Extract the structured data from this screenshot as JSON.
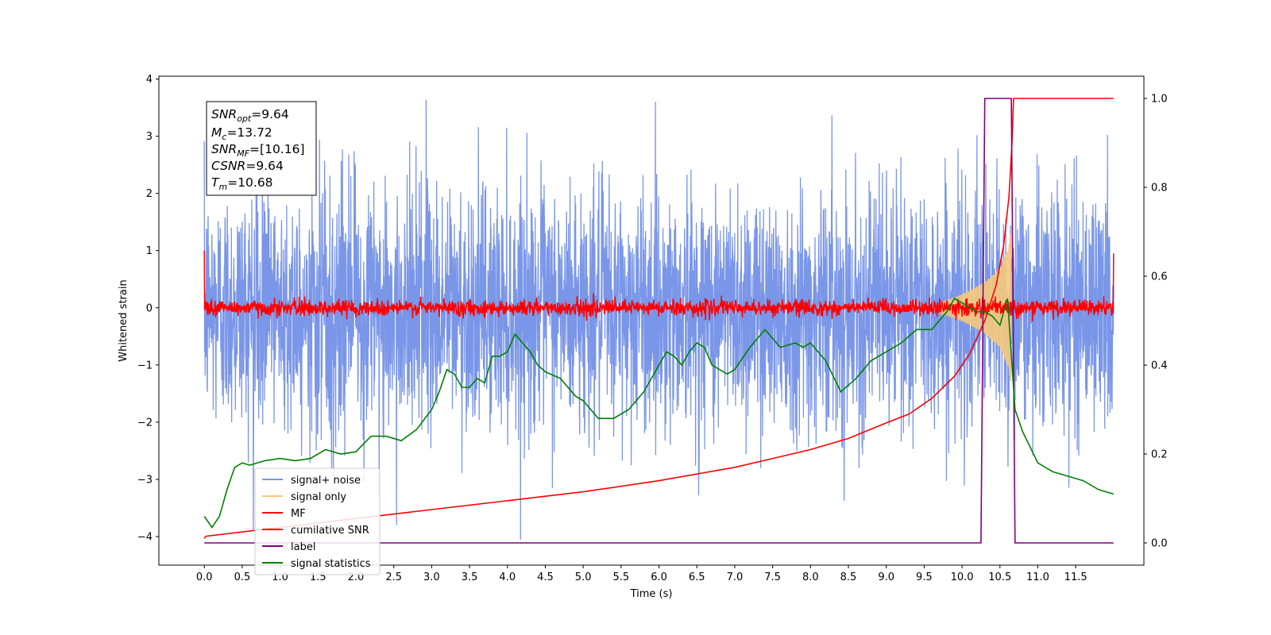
{
  "chart_data": {
    "type": "line",
    "title": "",
    "xlabel": "Time (s)",
    "ylabel": "Whitened strain",
    "y2label": "",
    "xlim": [
      -0.6,
      12.4
    ],
    "ylim": [
      -4.5,
      4.05
    ],
    "y2lim": [
      -0.05,
      1.05
    ],
    "xticks": [
      "0.0",
      "0.5",
      "1.0",
      "1.5",
      "2.0",
      "2.5",
      "3.0",
      "3.5",
      "4.0",
      "4.5",
      "5.0",
      "5.5",
      "6.0",
      "6.5",
      "7.0",
      "7.5",
      "8.0",
      "8.5",
      "9.0",
      "9.5",
      "10.0",
      "10.5",
      "11.0",
      "11.5"
    ],
    "yticks": [
      "−4",
      "−3",
      "−2",
      "−1",
      "0",
      "1",
      "2",
      "3",
      "4"
    ],
    "y2ticks": [
      "0.0",
      "0.2",
      "0.4",
      "0.6",
      "0.8",
      "1.0"
    ],
    "legend_position": "lower-left",
    "grid": false,
    "info_box": {
      "snr_opt": {
        "sym": "SNR",
        "sub": "opt",
        "val": "=9.64"
      },
      "mc": {
        "sym": "M",
        "sub": "c",
        "val": "=13.72"
      },
      "snr_mf": {
        "sym": "SNR",
        "sub": "MF",
        "val": "=[10.16]"
      },
      "csnr": {
        "sym": "CSNR",
        "sub": "",
        "val": "=9.64"
      },
      "tm": {
        "sym": "T",
        "sub": "m",
        "val": "=10.68"
      }
    },
    "series": [
      {
        "name": "signal+ noise",
        "color": "#7a96e8",
        "axis": "left",
        "std": 1.05,
        "range": [
          -4.15,
          3.65
        ],
        "t_range": [
          0.0,
          12.0
        ]
      },
      {
        "name": "signal only",
        "color": "#f5c97a",
        "axis": "left",
        "envelope_t": [
          9.7,
          9.9,
          10.1,
          10.3,
          10.5,
          10.6,
          10.65
        ],
        "envelope_amp": [
          0.1,
          0.18,
          0.3,
          0.45,
          0.7,
          1.0,
          1.4
        ]
      },
      {
        "name": "MF",
        "color": "#ff0000",
        "axis": "left",
        "std": 0.07,
        "t_range": [
          0.0,
          12.0
        ]
      },
      {
        "name": "cumilative SNR",
        "color": "#ff0000",
        "axis": "right",
        "t": [
          0.0,
          0.02,
          1.0,
          2.0,
          3.0,
          4.0,
          5.0,
          6.0,
          7.0,
          7.5,
          8.0,
          8.5,
          9.0,
          9.3,
          9.6,
          9.9,
          10.1,
          10.3,
          10.45,
          10.55,
          10.62,
          10.66,
          10.68,
          12.0
        ],
        "y": [
          0.01,
          0.015,
          0.035,
          0.055,
          0.075,
          0.095,
          0.115,
          0.14,
          0.17,
          0.19,
          0.21,
          0.235,
          0.27,
          0.29,
          0.325,
          0.375,
          0.425,
          0.5,
          0.58,
          0.67,
          0.78,
          0.9,
          1.0,
          1.0
        ]
      },
      {
        "name": "label",
        "color": "#800080",
        "axis": "right",
        "t": [
          0.0,
          10.25,
          10.3,
          10.65,
          10.7,
          12.0
        ],
        "y": [
          0.0,
          0.0,
          1.0,
          1.0,
          0.0,
          0.0
        ]
      },
      {
        "name": "signal statistics",
        "color": "#008000",
        "axis": "right",
        "t": [
          0.0,
          0.1,
          0.2,
          0.3,
          0.4,
          0.5,
          0.6,
          0.8,
          1.0,
          1.2,
          1.4,
          1.6,
          1.8,
          2.0,
          2.2,
          2.4,
          2.6,
          2.8,
          3.0,
          3.1,
          3.2,
          3.3,
          3.4,
          3.5,
          3.6,
          3.7,
          3.8,
          3.9,
          4.0,
          4.1,
          4.2,
          4.3,
          4.4,
          4.5,
          4.7,
          4.9,
          5.0,
          5.2,
          5.4,
          5.6,
          5.8,
          6.0,
          6.1,
          6.2,
          6.3,
          6.4,
          6.5,
          6.6,
          6.7,
          6.8,
          6.9,
          7.0,
          7.2,
          7.4,
          7.5,
          7.6,
          7.8,
          7.9,
          8.0,
          8.2,
          8.4,
          8.6,
          8.8,
          9.0,
          9.2,
          9.4,
          9.6,
          9.8,
          9.9,
          10.0,
          10.1,
          10.2,
          10.3,
          10.4,
          10.5,
          10.6,
          10.7,
          10.8,
          11.0,
          11.2,
          11.4,
          11.6,
          11.8,
          12.0
        ],
        "y": [
          0.06,
          0.035,
          0.06,
          0.12,
          0.17,
          0.18,
          0.175,
          0.185,
          0.19,
          0.185,
          0.19,
          0.21,
          0.2,
          0.205,
          0.24,
          0.24,
          0.23,
          0.255,
          0.3,
          0.34,
          0.39,
          0.38,
          0.35,
          0.35,
          0.37,
          0.36,
          0.42,
          0.42,
          0.43,
          0.47,
          0.45,
          0.43,
          0.4,
          0.385,
          0.37,
          0.33,
          0.32,
          0.28,
          0.28,
          0.3,
          0.34,
          0.4,
          0.43,
          0.42,
          0.4,
          0.43,
          0.45,
          0.44,
          0.4,
          0.39,
          0.38,
          0.39,
          0.44,
          0.48,
          0.46,
          0.44,
          0.45,
          0.44,
          0.45,
          0.41,
          0.34,
          0.37,
          0.41,
          0.43,
          0.45,
          0.48,
          0.48,
          0.52,
          0.55,
          0.54,
          0.53,
          0.52,
          0.52,
          0.51,
          0.49,
          0.55,
          0.3,
          0.25,
          0.18,
          0.16,
          0.15,
          0.14,
          0.12,
          0.11
        ]
      }
    ]
  }
}
